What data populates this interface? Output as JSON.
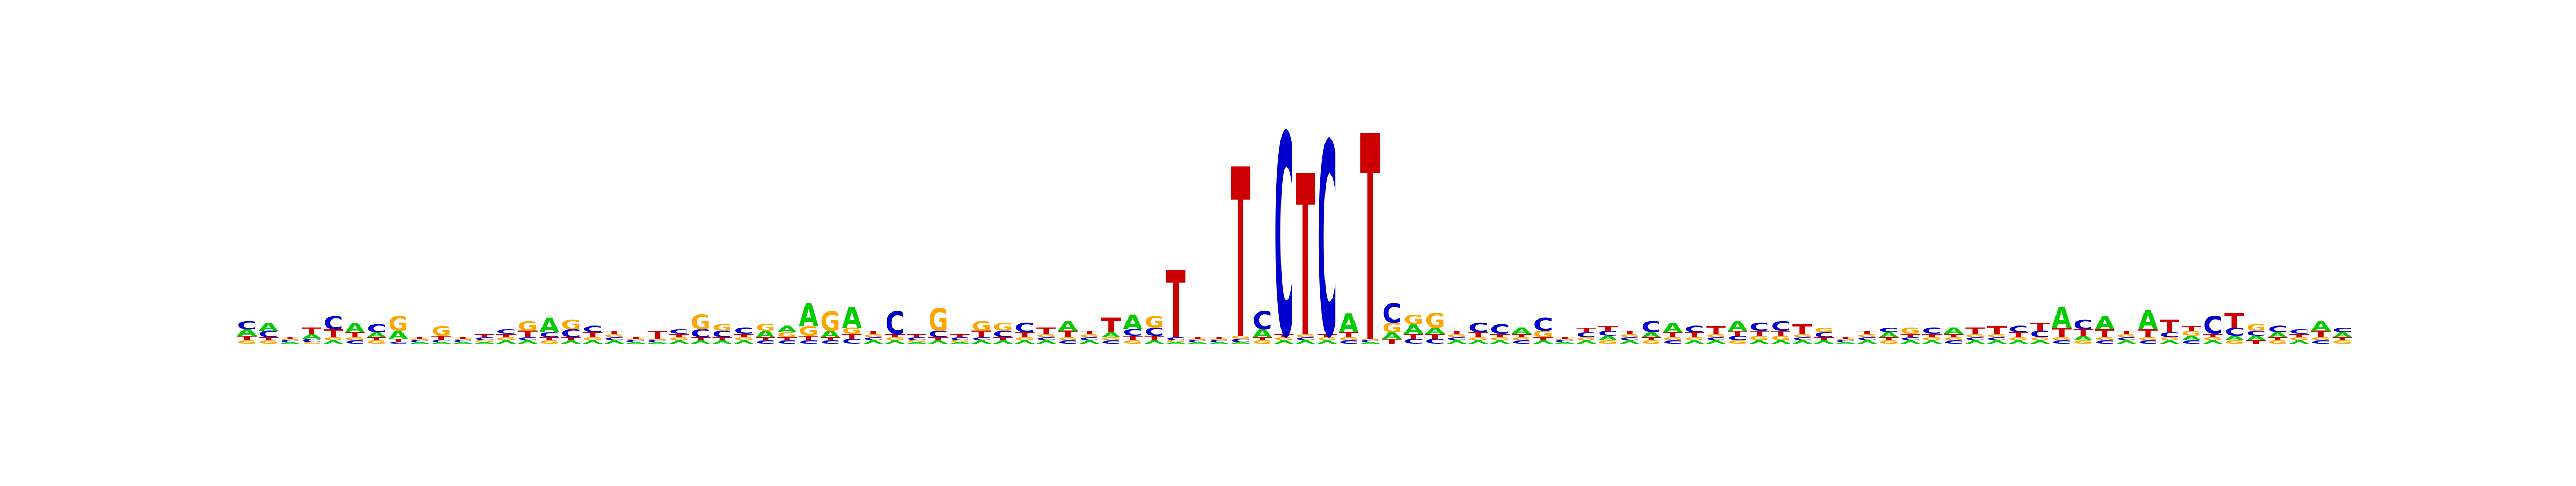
{
  "chart_data": {
    "type": "sequence-logo",
    "title": "",
    "xlabel": "",
    "ylabel": "",
    "axes_visible": false,
    "grid": false,
    "legend": "none",
    "colors": {
      "A": "#00cc00",
      "C": "#0000cc",
      "G": "#ffa500",
      "T": "#cc0000"
    },
    "columns": [
      {
        "A": 0.04,
        "C": 0.05,
        "G": 0.02,
        "T": 0.03
      },
      {
        "A": 0.05,
        "C": 0.04,
        "G": 0.02,
        "T": 0.02
      },
      {
        "A": 0.01,
        "C": 0.01,
        "G": 0.01,
        "T": 0.01
      },
      {
        "A": 0.03,
        "C": 0.02,
        "G": 0.01,
        "T": 0.04
      },
      {
        "A": 0.02,
        "C": 0.08,
        "G": 0.02,
        "T": 0.05
      },
      {
        "A": 0.06,
        "C": 0.02,
        "G": 0.02,
        "T": 0.03
      },
      {
        "A": 0.03,
        "C": 0.05,
        "G": 0.02,
        "T": 0.02
      },
      {
        "A": 0.05,
        "C": 0.01,
        "G": 0.09,
        "T": 0.02
      },
      {
        "A": 0.01,
        "C": 0.01,
        "G": 0.01,
        "T": 0.01
      },
      {
        "A": 0.01,
        "C": 0.01,
        "G": 0.06,
        "T": 0.03
      },
      {
        "A": 0.01,
        "C": 0.01,
        "G": 0.01,
        "T": 0.01
      },
      {
        "A": 0.01,
        "C": 0.02,
        "G": 0.01,
        "T": 0.02
      },
      {
        "A": 0.02,
        "C": 0.03,
        "G": 0.02,
        "T": 0.02
      },
      {
        "A": 0.02,
        "C": 0.02,
        "G": 0.06,
        "T": 0.04
      },
      {
        "A": 0.09,
        "C": 0.03,
        "G": 0.02,
        "T": 0.02
      },
      {
        "A": 0.02,
        "C": 0.05,
        "G": 0.06,
        "T": 0.02
      },
      {
        "A": 0.02,
        "C": 0.04,
        "G": 0.02,
        "T": 0.03
      },
      {
        "A": 0.02,
        "C": 0.02,
        "G": 0.02,
        "T": 0.02
      },
      {
        "A": 0.01,
        "C": 0.01,
        "G": 0.01,
        "T": 0.01
      },
      {
        "A": 0.01,
        "C": 0.01,
        "G": 0.01,
        "T": 0.05
      },
      {
        "A": 0.02,
        "C": 0.03,
        "G": 0.02,
        "T": 0.02
      },
      {
        "A": 0.02,
        "C": 0.05,
        "G": 0.09,
        "T": 0.02
      },
      {
        "A": 0.02,
        "C": 0.04,
        "G": 0.04,
        "T": 0.02
      },
      {
        "A": 0.02,
        "C": 0.04,
        "G": 0.02,
        "T": 0.02
      },
      {
        "A": 0.04,
        "C": 0.02,
        "G": 0.04,
        "T": 0.02
      },
      {
        "A": 0.04,
        "C": 0.02,
        "G": 0.03,
        "T": 0.02
      },
      {
        "A": 0.14,
        "C": 0.02,
        "G": 0.06,
        "T": 0.03
      },
      {
        "A": 0.04,
        "C": 0.02,
        "G": 0.12,
        "T": 0.02
      },
      {
        "A": 0.13,
        "C": 0.03,
        "G": 0.04,
        "T": 0.03
      },
      {
        "A": 0.02,
        "C": 0.02,
        "G": 0.02,
        "T": 0.02
      },
      {
        "A": 0.02,
        "C": 0.14,
        "G": 0.02,
        "T": 0.02
      },
      {
        "A": 0.01,
        "C": 0.02,
        "G": 0.01,
        "T": 0.02
      },
      {
        "A": 0.02,
        "C": 0.04,
        "G": 0.14,
        "T": 0.02
      },
      {
        "A": 0.01,
        "C": 0.02,
        "G": 0.01,
        "T": 0.02
      },
      {
        "A": 0.02,
        "C": 0.02,
        "G": 0.06,
        "T": 0.04
      },
      {
        "A": 0.02,
        "C": 0.04,
        "G": 0.05,
        "T": 0.02
      },
      {
        "A": 0.02,
        "C": 0.06,
        "G": 0.02,
        "T": 0.03
      },
      {
        "A": 0.02,
        "C": 0.02,
        "G": 0.02,
        "T": 0.04
      },
      {
        "A": 0.06,
        "C": 0.02,
        "G": 0.02,
        "T": 0.04
      },
      {
        "A": 0.02,
        "C": 0.02,
        "G": 0.02,
        "T": 0.02
      },
      {
        "A": 0.03,
        "C": 0.02,
        "G": 0.02,
        "T": 0.09
      },
      {
        "A": 0.09,
        "C": 0.04,
        "G": 0.02,
        "T": 0.03
      },
      {
        "A": 0.02,
        "C": 0.05,
        "G": 0.07,
        "T": 0.03
      },
      {
        "A": 0.01,
        "C": 0.02,
        "G": 0.01,
        "T": 0.42
      },
      {
        "A": 0.01,
        "C": 0.01,
        "G": 0.01,
        "T": 0.01
      },
      {
        "A": 0.01,
        "C": 0.01,
        "G": 0.01,
        "T": 0.01
      },
      {
        "A": 0.01,
        "C": 0.02,
        "G": 0.02,
        "T": 1.05
      },
      {
        "A": 0.05,
        "C": 0.11,
        "G": 0.02,
        "T": 0.02
      },
      {
        "A": 0.02,
        "C": 1.25,
        "G": 0.02,
        "T": 0.02
      },
      {
        "A": 0.02,
        "C": 0.02,
        "G": 0.02,
        "T": 1.0
      },
      {
        "A": 0.02,
        "C": 1.2,
        "G": 0.02,
        "T": 0.02
      },
      {
        "A": 0.12,
        "C": 0.02,
        "G": 0.02,
        "T": 0.03
      },
      {
        "A": 0.01,
        "C": 0.01,
        "G": 0.01,
        "T": 1.28
      },
      {
        "A": 0.04,
        "C": 0.12,
        "G": 0.06,
        "T": 0.03
      },
      {
        "A": 0.06,
        "C": 0.03,
        "G": 0.06,
        "T": 0.03
      },
      {
        "A": 0.04,
        "C": 0.03,
        "G": 0.09,
        "T": 0.03
      },
      {
        "A": 0.02,
        "C": 0.02,
        "G": 0.02,
        "T": 0.02
      },
      {
        "A": 0.02,
        "C": 0.06,
        "G": 0.02,
        "T": 0.03
      },
      {
        "A": 0.02,
        "C": 0.06,
        "G": 0.02,
        "T": 0.02
      },
      {
        "A": 0.04,
        "C": 0.02,
        "G": 0.02,
        "T": 0.02
      },
      {
        "A": 0.02,
        "C": 0.08,
        "G": 0.04,
        "T": 0.02
      },
      {
        "A": 0.01,
        "C": 0.01,
        "G": 0.01,
        "T": 0.01
      },
      {
        "A": 0.02,
        "C": 0.03,
        "G": 0.02,
        "T": 0.03
      },
      {
        "A": 0.03,
        "C": 0.03,
        "G": 0.02,
        "T": 0.03
      },
      {
        "A": 0.02,
        "C": 0.02,
        "G": 0.02,
        "T": 0.02
      },
      {
        "A": 0.03,
        "C": 0.07,
        "G": 0.02,
        "T": 0.02
      },
      {
        "A": 0.06,
        "C": 0.02,
        "G": 0.02,
        "T": 0.03
      },
      {
        "A": 0.02,
        "C": 0.04,
        "G": 0.02,
        "T": 0.03
      },
      {
        "A": 0.02,
        "C": 0.02,
        "G": 0.02,
        "T": 0.05
      },
      {
        "A": 0.06,
        "C": 0.03,
        "G": 0.02,
        "T": 0.03
      },
      {
        "A": 0.02,
        "C": 0.05,
        "G": 0.03,
        "T": 0.03
      },
      {
        "A": 0.02,
        "C": 0.06,
        "G": 0.03,
        "T": 0.03
      },
      {
        "A": 0.02,
        "C": 0.02,
        "G": 0.02,
        "T": 0.06
      },
      {
        "A": 0.02,
        "C": 0.03,
        "G": 0.03,
        "T": 0.02
      },
      {
        "A": 0.01,
        "C": 0.01,
        "G": 0.01,
        "T": 0.01
      },
      {
        "A": 0.02,
        "C": 0.02,
        "G": 0.02,
        "T": 0.02
      },
      {
        "A": 0.03,
        "C": 0.03,
        "G": 0.02,
        "T": 0.02
      },
      {
        "A": 0.02,
        "C": 0.02,
        "G": 0.04,
        "T": 0.02
      },
      {
        "A": 0.02,
        "C": 0.04,
        "G": 0.02,
        "T": 0.02
      },
      {
        "A": 0.04,
        "C": 0.02,
        "G": 0.02,
        "T": 0.02
      },
      {
        "A": 0.02,
        "C": 0.02,
        "G": 0.02,
        "T": 0.04
      },
      {
        "A": 0.02,
        "C": 0.02,
        "G": 0.02,
        "T": 0.05
      },
      {
        "A": 0.02,
        "C": 0.04,
        "G": 0.02,
        "T": 0.03
      },
      {
        "A": 0.02,
        "C": 0.04,
        "G": 0.02,
        "T": 0.05
      },
      {
        "A": 0.13,
        "C": 0.02,
        "G": 0.02,
        "T": 0.06
      },
      {
        "A": 0.03,
        "C": 0.06,
        "G": 0.02,
        "T": 0.04
      },
      {
        "A": 0.08,
        "C": 0.02,
        "G": 0.02,
        "T": 0.05
      },
      {
        "A": 0.02,
        "C": 0.02,
        "G": 0.02,
        "T": 0.02
      },
      {
        "A": 0.12,
        "C": 0.02,
        "G": 0.02,
        "T": 0.05
      },
      {
        "A": 0.02,
        "C": 0.03,
        "G": 0.02,
        "T": 0.08
      },
      {
        "A": 0.03,
        "C": 0.02,
        "G": 0.03,
        "T": 0.03
      },
      {
        "A": 0.02,
        "C": 0.11,
        "G": 0.02,
        "T": 0.02
      },
      {
        "A": 0.03,
        "C": 0.05,
        "G": 0.02,
        "T": 0.09
      },
      {
        "A": 0.03,
        "C": 0.03,
        "G": 0.04,
        "T": 0.02
      },
      {
        "A": 0.03,
        "C": 0.04,
        "G": 0.02,
        "T": 0.02
      },
      {
        "A": 0.02,
        "C": 0.03,
        "G": 0.02,
        "T": 0.02
      },
      {
        "A": 0.06,
        "C": 0.02,
        "G": 0.02,
        "T": 0.04
      },
      {
        "A": 0.03,
        "C": 0.03,
        "G": 0.02,
        "T": 0.02
      }
    ]
  }
}
